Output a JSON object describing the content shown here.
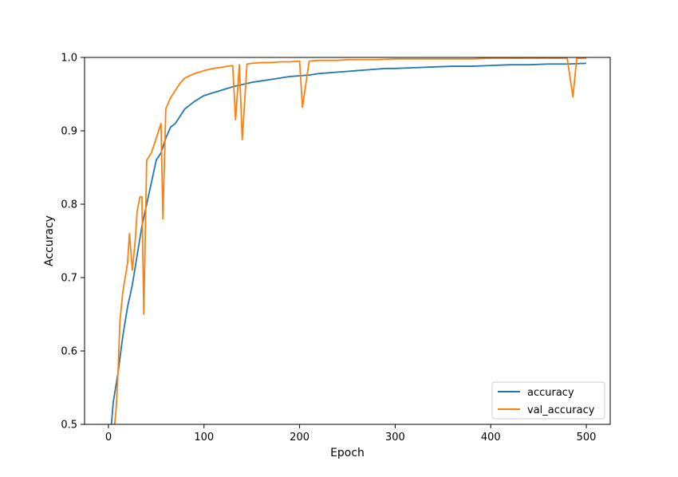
{
  "chart_data": {
    "type": "line",
    "title": "",
    "xlabel": "Epoch",
    "ylabel": "Accuracy",
    "xlim": [
      -25,
      525
    ],
    "ylim": [
      0.5,
      1.0
    ],
    "xticks": [
      0,
      100,
      200,
      300,
      400,
      500
    ],
    "xtick_labels": [
      "0",
      "100",
      "200",
      "300",
      "400",
      "500"
    ],
    "yticks": [
      0.5,
      0.6,
      0.7,
      0.8,
      0.9,
      1.0
    ],
    "ytick_labels": [
      "0.5",
      "0.6",
      "0.7",
      "0.8",
      "0.9",
      "1.0"
    ],
    "grid": false,
    "legend_position": "lower-right",
    "series": [
      {
        "name": "accuracy",
        "color": "#1f77b4",
        "x": [
          0,
          5,
          10,
          15,
          20,
          25,
          30,
          35,
          40,
          45,
          50,
          55,
          60,
          65,
          70,
          75,
          80,
          85,
          90,
          95,
          100,
          110,
          120,
          130,
          140,
          150,
          160,
          170,
          180,
          190,
          200,
          210,
          220,
          230,
          240,
          250,
          260,
          270,
          280,
          290,
          300,
          320,
          340,
          360,
          380,
          400,
          420,
          440,
          460,
          480,
          500
        ],
        "values": [
          0.45,
          0.53,
          0.57,
          0.62,
          0.66,
          0.69,
          0.73,
          0.77,
          0.8,
          0.83,
          0.86,
          0.87,
          0.89,
          0.905,
          0.91,
          0.92,
          0.93,
          0.935,
          0.94,
          0.944,
          0.948,
          0.952,
          0.956,
          0.96,
          0.963,
          0.966,
          0.968,
          0.97,
          0.972,
          0.974,
          0.975,
          0.976,
          0.978,
          0.979,
          0.98,
          0.981,
          0.982,
          0.983,
          0.984,
          0.985,
          0.985,
          0.986,
          0.987,
          0.988,
          0.988,
          0.989,
          0.99,
          0.99,
          0.991,
          0.991,
          0.992
        ]
      },
      {
        "name": "val_accuracy",
        "color": "#ff7f0e",
        "x": [
          0,
          5,
          8,
          10,
          12,
          15,
          20,
          22,
          25,
          28,
          30,
          33,
          35,
          37,
          40,
          45,
          50,
          55,
          57,
          60,
          65,
          70,
          75,
          80,
          90,
          100,
          110,
          120,
          130,
          133,
          137,
          140,
          145,
          150,
          160,
          170,
          180,
          190,
          200,
          203,
          210,
          220,
          240,
          250,
          260,
          280,
          300,
          320,
          340,
          360,
          380,
          400,
          420,
          440,
          460,
          480,
          486,
          490,
          500
        ],
        "values": [
          0.42,
          0.48,
          0.52,
          0.57,
          0.64,
          0.68,
          0.72,
          0.76,
          0.71,
          0.75,
          0.79,
          0.81,
          0.81,
          0.65,
          0.86,
          0.87,
          0.89,
          0.91,
          0.78,
          0.93,
          0.945,
          0.955,
          0.965,
          0.972,
          0.978,
          0.982,
          0.985,
          0.987,
          0.989,
          0.915,
          0.99,
          0.888,
          0.991,
          0.992,
          0.993,
          0.993,
          0.994,
          0.994,
          0.995,
          0.932,
          0.995,
          0.996,
          0.996,
          0.997,
          0.997,
          0.997,
          0.998,
          0.998,
          0.998,
          0.998,
          0.998,
          0.999,
          0.999,
          0.999,
          0.999,
          0.999,
          0.946,
          0.999,
          0.999
        ]
      }
    ]
  }
}
